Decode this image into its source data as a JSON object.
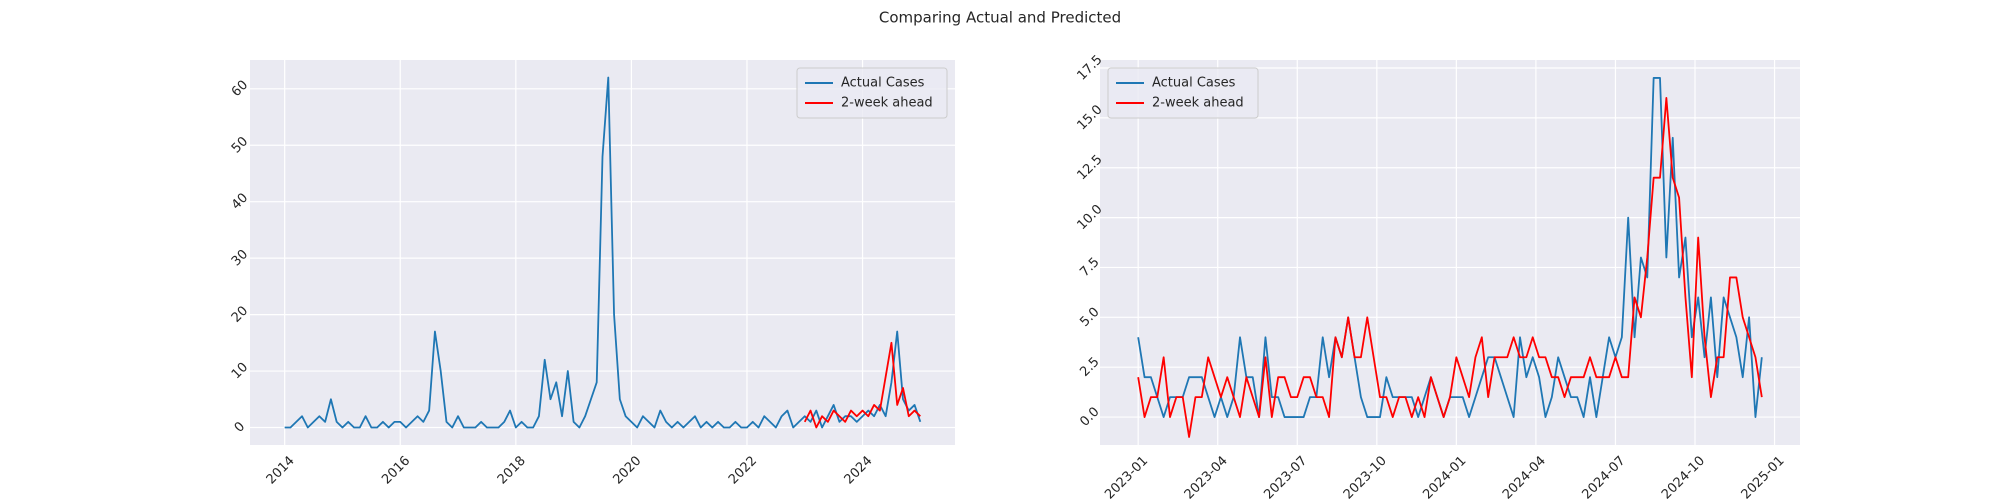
{
  "title": "Comparing Actual and Predicted",
  "chart_data": [
    {
      "type": "line",
      "legend": "upper right",
      "grid": true,
      "xlim": [
        2013.4,
        2025.6
      ],
      "xticks": [
        2014,
        2016,
        2018,
        2020,
        2022,
        2024
      ],
      "ylim": [
        -3.1,
        65.1
      ],
      "yticks": [
        0,
        10,
        20,
        30,
        40,
        50,
        60
      ],
      "x": [
        2014.0,
        2014.1,
        2014.2,
        2014.3,
        2014.4,
        2014.5,
        2014.6,
        2014.7,
        2014.8,
        2014.9,
        2015.0,
        2015.1,
        2015.2,
        2015.3,
        2015.4,
        2015.5,
        2015.6,
        2015.7,
        2015.8,
        2015.9,
        2016.0,
        2016.1,
        2016.2,
        2016.3,
        2016.4,
        2016.5,
        2016.6,
        2016.7,
        2016.8,
        2016.9,
        2017.0,
        2017.1,
        2017.2,
        2017.3,
        2017.4,
        2017.5,
        2017.6,
        2017.7,
        2017.8,
        2017.9,
        2018.0,
        2018.1,
        2018.2,
        2018.3,
        2018.4,
        2018.5,
        2018.6,
        2018.7,
        2018.8,
        2018.9,
        2019.0,
        2019.1,
        2019.2,
        2019.3,
        2019.4,
        2019.5,
        2019.6,
        2019.7,
        2019.8,
        2019.9,
        2020.0,
        2020.1,
        2020.2,
        2020.3,
        2020.4,
        2020.5,
        2020.6,
        2020.7,
        2020.8,
        2020.9,
        2021.0,
        2021.1,
        2021.2,
        2021.3,
        2021.4,
        2021.5,
        2021.6,
        2021.7,
        2021.8,
        2021.9,
        2022.0,
        2022.1,
        2022.2,
        2022.3,
        2022.4,
        2022.5,
        2022.6,
        2022.7,
        2022.8,
        2022.9,
        2023.0,
        2023.1,
        2023.2,
        2023.3,
        2023.4,
        2023.5,
        2023.6,
        2023.7,
        2023.8,
        2023.9,
        2024.0,
        2024.1,
        2024.2,
        2024.3,
        2024.4,
        2024.5,
        2024.6,
        2024.7,
        2024.8,
        2024.9,
        2025.0
      ],
      "series": [
        {
          "name": "Actual Cases",
          "color": "#1f77b4",
          "values": [
            0,
            0,
            1,
            2,
            0,
            1,
            2,
            1,
            5,
            1,
            0,
            1,
            0,
            0,
            2,
            0,
            0,
            1,
            0,
            1,
            1,
            0,
            1,
            2,
            1,
            3,
            17,
            10,
            1,
            0,
            2,
            0,
            0,
            0,
            1,
            0,
            0,
            0,
            1,
            3,
            0,
            1,
            0,
            0,
            2,
            12,
            5,
            8,
            2,
            10,
            1,
            0,
            2,
            5,
            8,
            48,
            62,
            20,
            5,
            2,
            1,
            0,
            2,
            1,
            0,
            3,
            1,
            0,
            1,
            0,
            1,
            2,
            0,
            1,
            0,
            1,
            0,
            0,
            1,
            0,
            0,
            1,
            0,
            2,
            1,
            0,
            2,
            3,
            0,
            1,
            2,
            1,
            3,
            0,
            2,
            4,
            1,
            2,
            2,
            1,
            2,
            3,
            2,
            4,
            2,
            8,
            17,
            5,
            3,
            4,
            1
          ]
        },
        {
          "name": "2-week ahead",
          "color": "#ff0000",
          "values": [
            null,
            null,
            null,
            null,
            null,
            null,
            null,
            null,
            null,
            null,
            null,
            null,
            null,
            null,
            null,
            null,
            null,
            null,
            null,
            null,
            null,
            null,
            null,
            null,
            null,
            null,
            null,
            null,
            null,
            null,
            null,
            null,
            null,
            null,
            null,
            null,
            null,
            null,
            null,
            null,
            null,
            null,
            null,
            null,
            null,
            null,
            null,
            null,
            null,
            null,
            null,
            null,
            null,
            null,
            null,
            null,
            null,
            null,
            null,
            null,
            null,
            null,
            null,
            null,
            null,
            null,
            null,
            null,
            null,
            null,
            null,
            null,
            null,
            null,
            null,
            null,
            null,
            null,
            null,
            null,
            null,
            null,
            null,
            null,
            null,
            null,
            null,
            null,
            null,
            null,
            1,
            3,
            0,
            2,
            1,
            3,
            2,
            1,
            3,
            2,
            3,
            2,
            4,
            3,
            9,
            15,
            4,
            7,
            2,
            3,
            2
          ]
        }
      ]
    },
    {
      "type": "line",
      "legend": "upper left",
      "grid": true,
      "xlim": [
        2022.88,
        2025.08
      ],
      "xticks": [
        {
          "value": 2023.0,
          "label": "2023-01"
        },
        {
          "value": 2023.25,
          "label": "2023-04"
        },
        {
          "value": 2023.5,
          "label": "2023-07"
        },
        {
          "value": 2023.75,
          "label": "2023-10"
        },
        {
          "value": 2024.0,
          "label": "2024-01"
        },
        {
          "value": 2024.25,
          "label": "2024-04"
        },
        {
          "value": 2024.5,
          "label": "2024-07"
        },
        {
          "value": 2024.75,
          "label": "2024-10"
        },
        {
          "value": 2025.0,
          "label": "2025-01"
        }
      ],
      "ylim": [
        -1.4,
        17.9
      ],
      "yticks": [
        {
          "value": 0,
          "label": "0.0"
        },
        {
          "value": 2.5,
          "label": "2.5"
        },
        {
          "value": 5,
          "label": "5.0"
        },
        {
          "value": 7.5,
          "label": "7.5"
        },
        {
          "value": 10,
          "label": "10.0"
        },
        {
          "value": 12.5,
          "label": "12.5"
        },
        {
          "value": 15,
          "label": "15.0"
        },
        {
          "value": 17.5,
          "label": "17.5"
        }
      ],
      "x": [
        2023.0,
        2023.02,
        2023.04,
        2023.06,
        2023.08,
        2023.1,
        2023.12,
        2023.14,
        2023.16,
        2023.18,
        2023.2,
        2023.22,
        2023.24,
        2023.26,
        2023.28,
        2023.3,
        2023.32,
        2023.34,
        2023.36,
        2023.38,
        2023.4,
        2023.42,
        2023.44,
        2023.46,
        2023.48,
        2023.5,
        2023.52,
        2023.54,
        2023.56,
        2023.58,
        2023.6,
        2023.62,
        2023.64,
        2023.66,
        2023.68,
        2023.7,
        2023.72,
        2023.74,
        2023.76,
        2023.78,
        2023.8,
        2023.82,
        2023.84,
        2023.86,
        2023.88,
        2023.9,
        2023.92,
        2023.94,
        2023.96,
        2023.98,
        2024.0,
        2024.02,
        2024.04,
        2024.06,
        2024.08,
        2024.1,
        2024.12,
        2024.14,
        2024.16,
        2024.18,
        2024.2,
        2024.22,
        2024.24,
        2024.26,
        2024.28,
        2024.3,
        2024.32,
        2024.34,
        2024.36,
        2024.38,
        2024.4,
        2024.42,
        2024.44,
        2024.46,
        2024.48,
        2024.5,
        2024.52,
        2024.54,
        2024.56,
        2024.58,
        2024.6,
        2024.62,
        2024.64,
        2024.66,
        2024.68,
        2024.7,
        2024.72,
        2024.74,
        2024.76,
        2024.78,
        2024.8,
        2024.82,
        2024.84,
        2024.86,
        2024.88,
        2024.9,
        2024.92,
        2024.94,
        2024.96
      ],
      "series": [
        {
          "name": "Actual Cases",
          "color": "#1f77b4",
          "values": [
            4,
            2,
            2,
            1,
            0,
            1,
            1,
            1,
            2,
            2,
            2,
            1,
            0,
            1,
            0,
            1,
            4,
            2,
            2,
            0,
            4,
            1,
            1,
            0,
            0,
            0,
            0,
            1,
            1,
            4,
            2,
            4,
            3,
            5,
            3,
            1,
            0,
            0,
            0,
            2,
            1,
            1,
            1,
            1,
            0,
            1,
            2,
            1,
            0,
            1,
            1,
            1,
            0,
            1,
            2,
            3,
            3,
            2,
            1,
            0,
            4,
            2,
            3,
            2,
            0,
            1,
            3,
            2,
            1,
            1,
            0,
            2,
            0,
            2,
            4,
            3,
            4,
            10,
            4,
            8,
            7,
            17,
            17,
            8,
            14,
            7,
            9,
            4,
            6,
            3,
            6,
            2,
            6,
            5,
            4,
            2,
            5,
            0,
            3
          ]
        },
        {
          "name": "2-week ahead",
          "color": "#ff0000",
          "values": [
            2,
            0,
            1,
            1,
            3,
            0,
            1,
            1,
            -1,
            1,
            1,
            3,
            2,
            1,
            2,
            1,
            0,
            2,
            1,
            0,
            3,
            0,
            2,
            2,
            1,
            1,
            2,
            2,
            1,
            1,
            0,
            4,
            3,
            5,
            3,
            3,
            5,
            3,
            1,
            1,
            0,
            1,
            1,
            0,
            1,
            0,
            2,
            1,
            0,
            1,
            3,
            2,
            1,
            3,
            4,
            1,
            3,
            3,
            3,
            4,
            3,
            3,
            4,
            3,
            3,
            2,
            2,
            1,
            2,
            2,
            2,
            3,
            2,
            2,
            2,
            3,
            2,
            2,
            6,
            5,
            8,
            12,
            12,
            16,
            12,
            11,
            6,
            2,
            9,
            4,
            1,
            3,
            3,
            7,
            7,
            5,
            4,
            3,
            1
          ]
        }
      ]
    }
  ]
}
